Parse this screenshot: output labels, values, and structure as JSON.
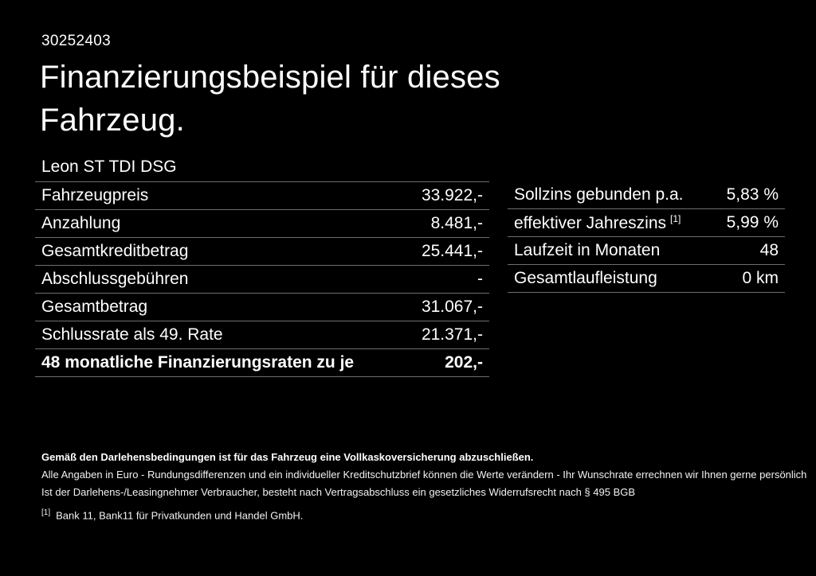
{
  "page": {
    "background": "#000000",
    "text_color": "#ffffff",
    "divider_color": "#6e6e6e"
  },
  "header": {
    "document_id": "30252403",
    "title": "Finanzierungsbeispiel für dieses\nFahrzeug.",
    "vehicle_model": "Leon ST TDI DSG"
  },
  "financing_table": {
    "rows": [
      {
        "label": "Fahrzeugpreis",
        "value": "33.922,-"
      },
      {
        "label": "Anzahlung",
        "value": "8.481,-"
      },
      {
        "label": "Gesamtkreditbetrag",
        "value": "25.441,-"
      },
      {
        "label": "Abschlussgebühren",
        "value": "-"
      },
      {
        "label": "Gesamtbetrag",
        "value": "31.067,-"
      },
      {
        "label": "Schlussrate als 49. Rate",
        "value": "21.371,-"
      },
      {
        "label": "48 monatliche Finanzierungsraten zu je",
        "value": "202,-"
      }
    ]
  },
  "conditions_table": {
    "rows": [
      {
        "label": "Sollzins gebunden p.a.",
        "sup": "",
        "value": "5,83 %"
      },
      {
        "label": "effektiver Jahreszins",
        "sup": "[1]",
        "value": "5,99 %"
      },
      {
        "label": "Laufzeit in Monaten",
        "sup": "",
        "value": "48"
      },
      {
        "label": "Gesamtlaufleistung",
        "sup": "",
        "value": "0 km"
      }
    ]
  },
  "footer": {
    "insurance_note": "Gemäß den Darlehensbedingungen ist für das Fahrzeug eine Vollkaskoversicherung abzuschließen.",
    "disclaimer_line1": "Alle Angaben in Euro - Rundungsdifferenzen und ein individueller Kreditschutzbrief können die Werte verändern - Ihr Wunschrate errechnen wir Ihnen gerne persönlich",
    "disclaimer_line2": "Ist der Darlehens-/Leasingnehmer Verbraucher, besteht nach Vertragsabschluss ein gesetzliches Widerrufsrecht nach § 495 BGB",
    "footnote_marker": "[1]",
    "footnote_text": "Bank 11, Bank11 für Privatkunden und Handel GmbH."
  }
}
